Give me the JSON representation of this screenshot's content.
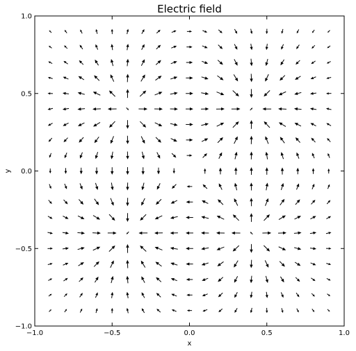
{
  "chart_data": {
    "type": "quiver",
    "title": "Electric field",
    "xlabel": "x",
    "ylabel": "y",
    "xlim": [
      -1.0,
      1.0
    ],
    "ylim": [
      -1.0,
      1.0
    ],
    "xticks": [
      "−1.0",
      "−0.5",
      "0.0",
      "0.5",
      "1.0"
    ],
    "yticks": [
      "−1.0",
      "−0.5",
      "0.0",
      "0.5",
      "1.0"
    ],
    "xtick_values": [
      -1.0,
      -0.5,
      0.0,
      0.5,
      1.0
    ],
    "ytick_values": [
      -1.0,
      -0.5,
      0.0,
      0.5,
      1.0
    ],
    "grid": false,
    "arrow_color": "#000000",
    "grid_x_range": [
      -0.9,
      0.9
    ],
    "grid_y_range": [
      -0.9,
      0.9
    ],
    "grid_step": 0.1,
    "sources": [
      {
        "x": -0.4,
        "y": 0.4,
        "charge": 1
      },
      {
        "x": 0.4,
        "y": 0.4,
        "charge": -1
      },
      {
        "x": -0.4,
        "y": -0.4,
        "charge": -1
      },
      {
        "x": 0.4,
        "y": -0.4,
        "charge": 1
      }
    ]
  }
}
